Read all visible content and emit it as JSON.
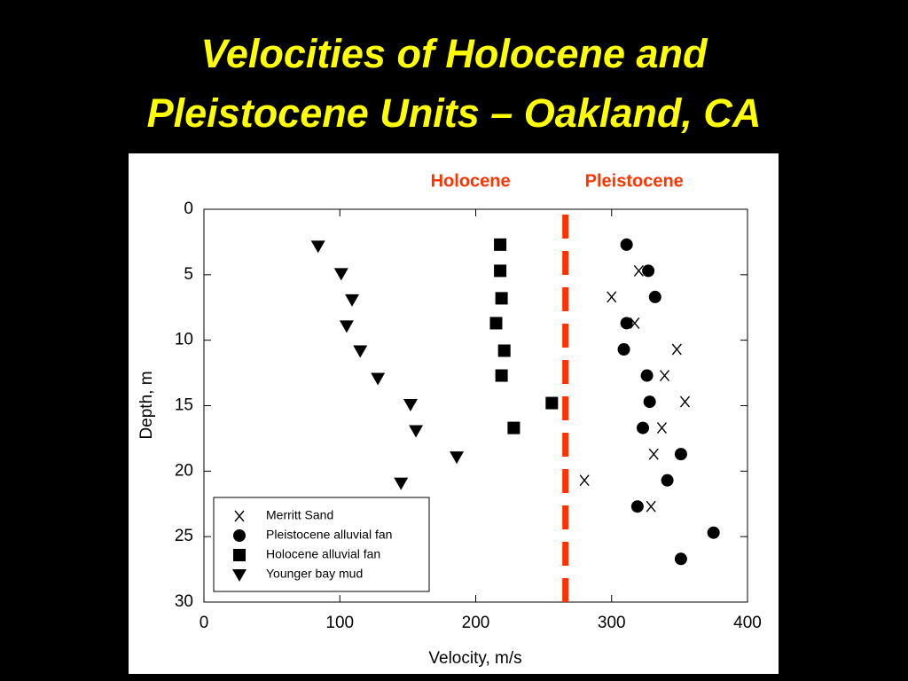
{
  "chart_data": {
    "type": "scatter",
    "title": [
      "Velocities of Holocene and",
      "Pleistocene Units – Oakland, CA"
    ],
    "x_label": "Velocity, m/s",
    "y_label": "Depth, m",
    "xlim": [
      0,
      400
    ],
    "xticks": [
      0,
      100,
      200,
      300,
      400
    ],
    "ylim": [
      0,
      30
    ],
    "yticks": [
      0,
      5,
      10,
      15,
      20,
      25,
      30
    ],
    "y_inverted": true,
    "grid": false,
    "legend": "lower left",
    "boundary": {
      "x": 266,
      "color": "#ff3300"
    },
    "annotations": [
      {
        "text": "Holocene",
        "color": "#ff3300"
      },
      {
        "text": "Pleistocene",
        "color": "#ff3300"
      }
    ],
    "series": [
      {
        "name": "Merritt Sand",
        "marker": "x",
        "color": "#000000",
        "x": [
          320,
          300,
          317,
          348,
          339,
          354,
          337,
          331,
          280,
          329
        ],
        "y": [
          4.7,
          6.7,
          8.7,
          10.7,
          12.7,
          14.7,
          16.7,
          18.7,
          20.7,
          22.7
        ]
      },
      {
        "name": "Pleistocene alluvial fan",
        "marker": "circle",
        "color": "#000000",
        "x": [
          311,
          327,
          332,
          311,
          309,
          326,
          328,
          323,
          351,
          341,
          319,
          375,
          351
        ],
        "y": [
          2.7,
          4.7,
          6.7,
          8.7,
          10.7,
          12.7,
          14.7,
          16.7,
          18.7,
          20.7,
          22.7,
          24.7,
          26.7
        ]
      },
      {
        "name": "Holocene alluvial fan",
        "marker": "square",
        "color": "#000000",
        "x": [
          218,
          218,
          219,
          215,
          221,
          219,
          256,
          228
        ],
        "y": [
          2.7,
          4.7,
          6.8,
          8.7,
          10.8,
          12.7,
          14.8,
          16.7
        ]
      },
      {
        "name": "Younger bay mud",
        "marker": "triangle",
        "color": "#000000",
        "x": [
          84,
          101,
          109,
          105,
          115,
          128,
          152,
          156,
          186,
          145
        ],
        "y": [
          2.8,
          4.9,
          6.9,
          8.9,
          10.8,
          12.9,
          14.9,
          16.9,
          18.9,
          20.9
        ]
      }
    ]
  }
}
